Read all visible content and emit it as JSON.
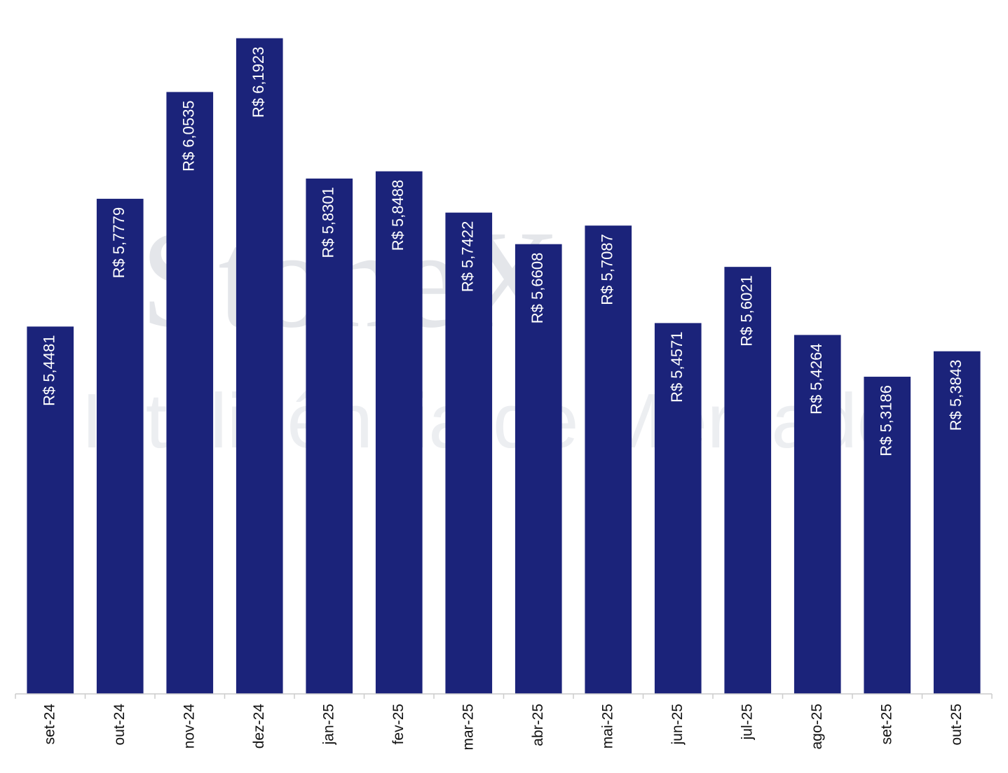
{
  "chart_data": {
    "type": "bar",
    "watermark": "StoneX",
    "watermark_subtitle": "Inteligência de Mercado",
    "categories": [
      "set-24",
      "out-24",
      "nov-24",
      "dez-24",
      "jan-25",
      "fev-25",
      "mar-25",
      "abr-25",
      "mai-25",
      "jun-25",
      "jul-25",
      "ago-25",
      "set-25",
      "out-25"
    ],
    "values": [
      5.4481,
      5.7779,
      6.0535,
      6.1923,
      5.8301,
      5.8488,
      5.7422,
      5.6608,
      5.7087,
      5.4571,
      5.6021,
      5.4264,
      5.3186,
      5.3843
    ],
    "value_labels": [
      "R$ 5,4481",
      "R$ 5,7779",
      "R$ 6,0535",
      "R$ 6,1923",
      "R$ 5,8301",
      "R$ 5,8488",
      "R$ 5,7422",
      "R$ 5,6608",
      "R$ 5,7087",
      "R$ 5,4571",
      "R$ 5,6021",
      "R$ 5,4264",
      "R$ 5,3186",
      "R$ 5,3843"
    ],
    "color": "#1b237a",
    "ylim": [
      4.5,
      6.3
    ]
  }
}
